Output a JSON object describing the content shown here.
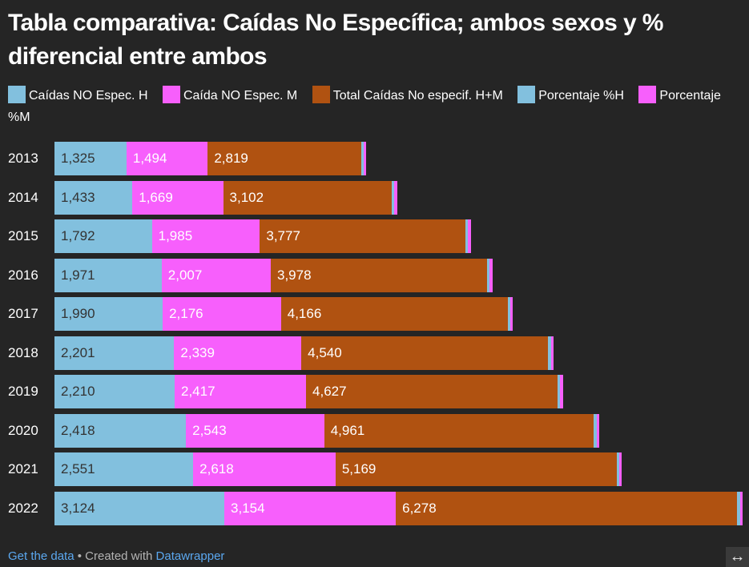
{
  "title": "Tabla comparativa: Caídas No Específica; ambos sexos y % diferencial entre ambos",
  "legend": [
    {
      "label": "Caídas NO Espec. H",
      "color": "#82c0de"
    },
    {
      "label": "Caída NO Espec. M",
      "color": "#f75ffc"
    },
    {
      "label": "Total Caídas No especif. H+M",
      "color": "#b05211"
    },
    {
      "label": "Porcentaje %H",
      "color": "#82c0de"
    },
    {
      "label": "Porcentaje %M",
      "color": "#f75ffc"
    }
  ],
  "footer": {
    "get_data": "Get the data",
    "separator": " • Created with ",
    "brand": "Datawrapper",
    "expand_icon": "↔"
  },
  "chart_data": {
    "type": "bar",
    "orientation": "horizontal",
    "stacked": true,
    "title": "Tabla comparativa: Caídas No Específica; ambos sexos y % diferencial entre ambos",
    "categories": [
      "2013",
      "2014",
      "2015",
      "2016",
      "2017",
      "2018",
      "2019",
      "2020",
      "2021",
      "2022"
    ],
    "series": [
      {
        "name": "Caídas NO Espec. H",
        "color": "#82c0de",
        "label_color": "#333333",
        "values": [
          1325,
          1433,
          1792,
          1971,
          1990,
          2201,
          2210,
          2418,
          2551,
          3124
        ]
      },
      {
        "name": "Caída NO Espec. M",
        "color": "#f75ffc",
        "label_color": "#ffffff",
        "values": [
          1494,
          1669,
          1985,
          2007,
          2176,
          2339,
          2417,
          2543,
          2618,
          3154
        ]
      },
      {
        "name": "Total Caídas No especif. H+M",
        "color": "#b05211",
        "label_color": "#ffffff",
        "values": [
          2819,
          3102,
          3777,
          3978,
          4166,
          4540,
          4627,
          4961,
          5169,
          6278
        ]
      },
      {
        "name": "Porcentaje %H",
        "color": "#82c0de",
        "label_color": null,
        "values": [
          47.0,
          46.2,
          47.4,
          49.5,
          47.8,
          48.5,
          47.8,
          48.7,
          49.4,
          49.8
        ]
      },
      {
        "name": "Porcentaje %M",
        "color": "#f75ffc",
        "label_color": null,
        "values": [
          53.0,
          53.8,
          52.6,
          50.5,
          52.2,
          51.5,
          52.2,
          51.3,
          50.6,
          50.2
        ]
      }
    ],
    "value_labels_shown_for": [
      "Caídas NO Espec. H",
      "Caída NO Espec. M",
      "Total Caídas No especif. H+M"
    ],
    "number_format": "thousands-comma",
    "xlabel": "",
    "ylabel": "",
    "xlim": [
      0,
      12700
    ],
    "grid": false,
    "legend_position": "top"
  }
}
